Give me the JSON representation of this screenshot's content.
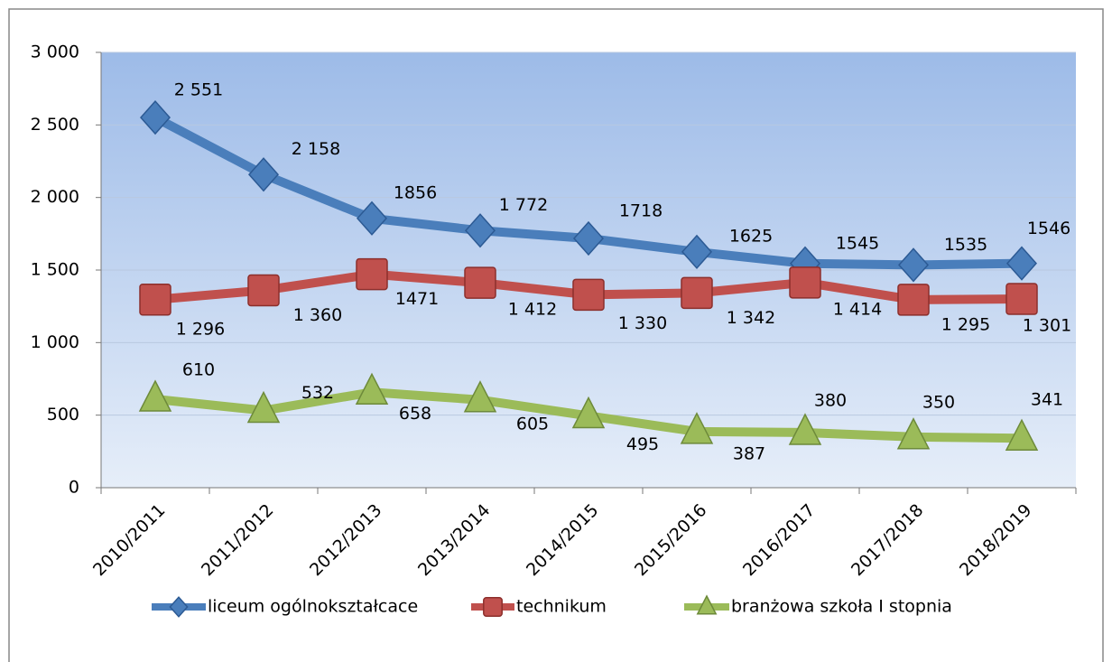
{
  "chart_data": {
    "type": "line",
    "categories": [
      "2010/2011",
      "2011/2012",
      "2012/2013",
      "2013/2014",
      "2014/2015",
      "2015/2016",
      "2016/2017",
      "2017/2018",
      "2018/2019"
    ],
    "series": [
      {
        "name": "liceum ogólnokształcace",
        "color": "#4a7ebb",
        "marker": "diamond",
        "values": [
          2551,
          2158,
          1856,
          1772,
          1718,
          1625,
          1545,
          1535,
          1546
        ],
        "value_labels": [
          "2 551",
          "2 158",
          "1856",
          "1 772",
          "1718",
          "1625",
          "1545",
          "1535",
          "1546"
        ]
      },
      {
        "name": "technikum",
        "color": "#c0504d",
        "marker": "square",
        "values": [
          1296,
          1360,
          1471,
          1412,
          1330,
          1342,
          1414,
          1295,
          1301
        ],
        "value_labels": [
          "1 296",
          "1 360",
          "1471",
          "1 412",
          "1 330",
          "1 342",
          "1 414",
          "1 295",
          "1 301"
        ]
      },
      {
        "name": "branżowa szkoła I stopnia",
        "color": "#9bbb59",
        "marker": "triangle",
        "values": [
          610,
          532,
          658,
          605,
          495,
          387,
          380,
          350,
          341
        ]
      }
    ],
    "ylim": [
      0,
      3000
    ],
    "yticks": [
      0,
      500,
      {
        "value": 1000,
        "label": "1 000"
      },
      {
        "value": 1500,
        "label": "1 500"
      },
      {
        "value": 2000,
        "label": "2 000"
      },
      {
        "value": 2500,
        "label": "2 500"
      },
      {
        "value": 3000,
        "label": "3 000"
      }
    ],
    "grid": true,
    "legend": "bottom"
  }
}
